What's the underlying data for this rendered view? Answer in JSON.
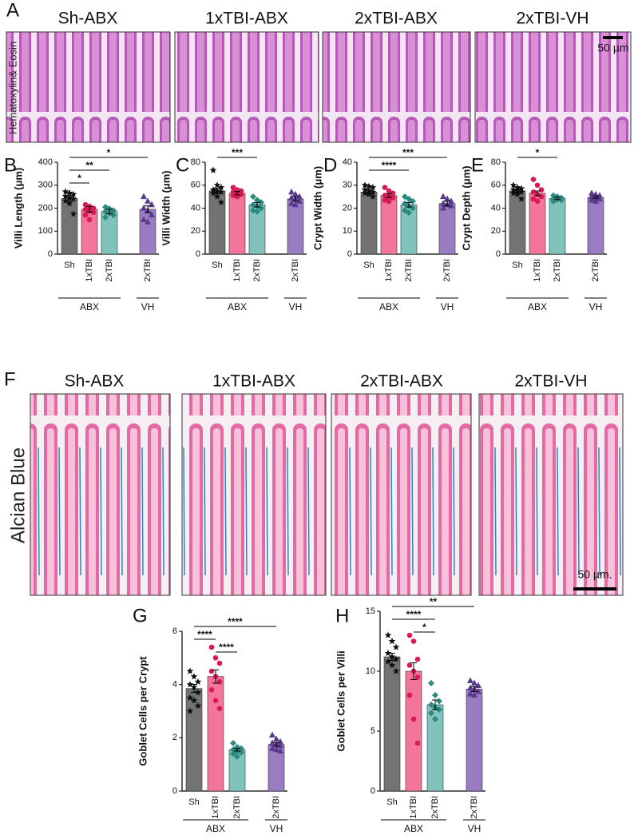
{
  "figure": {
    "panels": [
      "A",
      "B",
      "C",
      "D",
      "E",
      "F",
      "G",
      "H"
    ],
    "he_row": {
      "stain": "Hematoxylin& Eosin",
      "titles": [
        "Sh-ABX",
        "1xTBI-ABX",
        "2xTBI-ABX",
        "2xTBI-VH"
      ],
      "scale_bar": "50 µm"
    },
    "ab_row": {
      "stain": "Alcian Blue",
      "titles": [
        "Sh-ABX",
        "1xTBI-ABX",
        "2xTBI-ABX",
        "2xTBI-VH"
      ],
      "scale_bar": "50 µm."
    }
  },
  "chart_data": [
    {
      "type": "bar",
      "ylabel": "Villi Length (μm)",
      "categories": [
        "Sh",
        "1xTBI",
        "2xTBI",
        "2xTBI"
      ],
      "colors": [
        "#737373",
        "#f3759a",
        "#80c3bd",
        "#9a7cc2"
      ],
      "point_colors": [
        "#111111",
        "#d81b55",
        "#2b8a80",
        "#5a3a8c"
      ],
      "markers": [
        "star",
        "circle",
        "diamond",
        "triangle"
      ],
      "values": [
        242,
        195,
        185,
        195
      ],
      "errors": [
        12,
        12,
        10,
        15
      ],
      "points": [
        [
          272,
          266,
          260,
          252,
          245,
          240,
          232,
          220,
          175
        ],
        [
          215,
          208,
          200,
          195,
          188,
          182,
          170,
          150
        ],
        [
          205,
          198,
          190,
          185,
          178,
          170,
          160
        ],
        [
          250,
          230,
          215,
          200,
          190,
          170,
          150,
          140
        ]
      ],
      "ylim": [
        0,
        400
      ],
      "yticks": [
        0,
        100,
        200,
        300,
        400
      ],
      "groups": [
        {
          "label": "ABX",
          "size": 3
        },
        {
          "label": "VH",
          "size": 1
        }
      ],
      "significance": [
        {
          "label": "*",
          "between": [
            0,
            3
          ]
        },
        {
          "label": "**",
          "between": [
            0,
            2
          ]
        },
        {
          "label": "*",
          "between": [
            0,
            1
          ]
        }
      ]
    },
    {
      "type": "bar",
      "ylabel": "Villi Width (μm)",
      "categories": [
        "Sh",
        "1xTBI",
        "2xTBI",
        "2xTBI"
      ],
      "colors": [
        "#737373",
        "#f3759a",
        "#80c3bd",
        "#9a7cc2"
      ],
      "point_colors": [
        "#111111",
        "#d81b55",
        "#2b8a80",
        "#5a3a8c"
      ],
      "markers": [
        "star",
        "circle",
        "diamond",
        "triangle"
      ],
      "values": [
        55,
        53,
        43,
        48
      ],
      "errors": [
        2.5,
        1.5,
        2,
        2
      ],
      "points": [
        [
          73,
          60,
          58,
          56,
          55,
          54,
          53,
          50,
          45
        ],
        [
          58,
          56,
          55,
          54,
          53,
          52,
          51,
          50
        ],
        [
          50,
          47,
          45,
          43,
          42,
          40,
          38,
          37
        ],
        [
          54,
          52,
          50,
          49,
          48,
          46,
          44,
          43
        ]
      ],
      "ylim": [
        0,
        80
      ],
      "yticks": [
        0,
        20,
        40,
        60,
        80
      ],
      "groups": [
        {
          "label": "ABX",
          "size": 3
        },
        {
          "label": "VH",
          "size": 1
        }
      ],
      "significance": [
        {
          "label": "***",
          "between": [
            0,
            2
          ]
        }
      ]
    },
    {
      "type": "bar",
      "ylabel": "Crypt Width (μm)",
      "categories": [
        "Sh",
        "1xTBI",
        "2xTBI",
        "2xTBI"
      ],
      "colors": [
        "#737373",
        "#f3759a",
        "#80c3bd",
        "#9a7cc2"
      ],
      "point_colors": [
        "#111111",
        "#d81b55",
        "#2b8a80",
        "#5a3a8c"
      ],
      "markers": [
        "star",
        "circle",
        "diamond",
        "triangle"
      ],
      "values": [
        27,
        25.5,
        21.5,
        22
      ],
      "errors": [
        0.8,
        0.8,
        1,
        1
      ],
      "points": [
        [
          30,
          29.5,
          29,
          28,
          27.5,
          27,
          26.5,
          26,
          25
        ],
        [
          29,
          27.5,
          26.5,
          25.5,
          25,
          24.5,
          23.5,
          23
        ],
        [
          25,
          24,
          23,
          22,
          21,
          20,
          19,
          18
        ],
        [
          25,
          24,
          23,
          22,
          21.5,
          21,
          20
        ]
      ],
      "ylim": [
        0,
        40
      ],
      "yticks": [
        0,
        10,
        20,
        30,
        40
      ],
      "groups": [
        {
          "label": "ABX",
          "size": 3
        },
        {
          "label": "VH",
          "size": 1
        }
      ],
      "significance": [
        {
          "label": "***",
          "between": [
            0,
            3
          ]
        },
        {
          "label": "****",
          "between": [
            0,
            2
          ]
        }
      ]
    },
    {
      "type": "bar",
      "ylabel": "Crypt Depth (μm)",
      "categories": [
        "Sh",
        "1xTBI",
        "2xTBI",
        "2xTBI"
      ],
      "colors": [
        "#737373",
        "#f3759a",
        "#80c3bd",
        "#9a7cc2"
      ],
      "point_colors": [
        "#111111",
        "#d81b55",
        "#2b8a80",
        "#5a3a8c"
      ],
      "markers": [
        "star",
        "circle",
        "diamond",
        "triangle"
      ],
      "values": [
        55,
        53,
        48.5,
        49.5
      ],
      "errors": [
        1.5,
        2,
        1,
        1
      ],
      "points": [
        [
          60,
          58,
          57,
          56,
          55,
          54,
          53,
          52,
          48
        ],
        [
          65,
          60,
          56,
          54,
          52,
          50,
          48,
          46
        ],
        [
          51,
          50,
          49,
          48,
          47.5,
          47,
          46
        ],
        [
          53,
          52,
          51,
          50,
          49,
          48,
          47,
          46
        ]
      ],
      "ylim": [
        0,
        80
      ],
      "yticks": [
        0,
        20,
        40,
        60,
        80
      ],
      "groups": [
        {
          "label": "ABX",
          "size": 3
        },
        {
          "label": "VH",
          "size": 1
        }
      ],
      "significance": [
        {
          "label": "*",
          "between": [
            0,
            2
          ]
        }
      ]
    },
    {
      "type": "bar",
      "ylabel": "Goblet Cells per Crypt",
      "categories": [
        "Sh",
        "1xTBI",
        "2xTBI",
        "2xTBI"
      ],
      "colors": [
        "#737373",
        "#f3759a",
        "#80c3bd",
        "#9a7cc2"
      ],
      "point_colors": [
        "#111111",
        "#d81b55",
        "#2b8a80",
        "#5a3a8c"
      ],
      "markers": [
        "star",
        "circle",
        "diamond",
        "triangle"
      ],
      "values": [
        3.85,
        4.3,
        1.55,
        1.75
      ],
      "errors": [
        0.15,
        0.25,
        0.05,
        0.07
      ],
      "points": [
        [
          4.5,
          4.3,
          4.1,
          4.0,
          3.9,
          3.7,
          3.5,
          3.4,
          3.2,
          3.0
        ],
        [
          5.4,
          5.0,
          4.8,
          4.5,
          4.3,
          4.1,
          3.8,
          3.4,
          3.1
        ],
        [
          1.8,
          1.65,
          1.6,
          1.55,
          1.5,
          1.45,
          1.4,
          1.3
        ],
        [
          2.1,
          1.95,
          1.85,
          1.8,
          1.75,
          1.7,
          1.6,
          1.55,
          1.5
        ]
      ],
      "ylim": [
        0,
        6
      ],
      "yticks": [
        0,
        2,
        4,
        6
      ],
      "groups": [
        {
          "label": "ABX",
          "size": 3
        },
        {
          "label": "VH",
          "size": 1
        }
      ],
      "significance": [
        {
          "label": "****",
          "between": [
            0,
            3
          ]
        },
        {
          "label": "****",
          "between": [
            0,
            1
          ]
        },
        {
          "label": "****",
          "between": [
            1,
            2
          ]
        }
      ]
    },
    {
      "type": "bar",
      "ylabel": "Goblet Cells per Villi",
      "categories": [
        "Sh",
        "1xTBI",
        "2xTBI",
        "2xTBI"
      ],
      "colors": [
        "#737373",
        "#f3759a",
        "#80c3bd",
        "#9a7cc2"
      ],
      "point_colors": [
        "#111111",
        "#d81b55",
        "#2b8a80",
        "#5a3a8c"
      ],
      "markers": [
        "star",
        "circle",
        "diamond",
        "triangle"
      ],
      "values": [
        11.2,
        10,
        7.2,
        8.5
      ],
      "errors": [
        0.3,
        0.7,
        0.4,
        0.2
      ],
      "points": [
        [
          13,
          12.5,
          12,
          11.5,
          11.2,
          11,
          10.8,
          10.5,
          10
        ],
        [
          13,
          12.5,
          11,
          10.5,
          10,
          9.5,
          8,
          6,
          4
        ],
        [
          9,
          8,
          7.5,
          7.2,
          7,
          6.8,
          6.5,
          6
        ],
        [
          9.2,
          9,
          8.8,
          8.6,
          8.5,
          8.3,
          8.1,
          8
        ]
      ],
      "ylim": [
        0,
        15
      ],
      "yticks": [
        0,
        5,
        10,
        15
      ],
      "groups": [
        {
          "label": "ABX",
          "size": 3
        },
        {
          "label": "VH",
          "size": 1
        }
      ],
      "significance": [
        {
          "label": "**",
          "between": [
            0,
            3
          ]
        },
        {
          "label": "****",
          "between": [
            0,
            2
          ]
        },
        {
          "label": "*",
          "between": [
            1,
            2
          ]
        }
      ]
    }
  ]
}
